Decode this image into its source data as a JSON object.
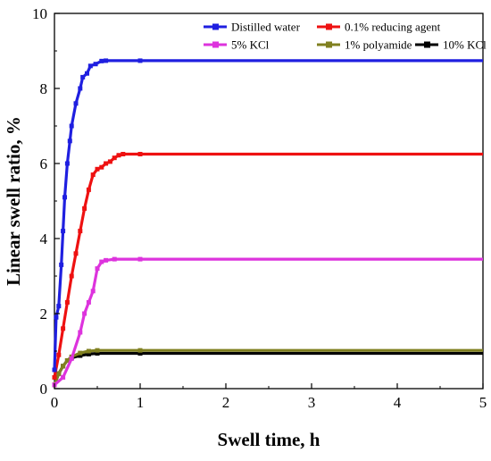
{
  "chart_data": {
    "type": "line",
    "title": "",
    "xlabel": "Swell time, h",
    "ylabel": "Linear swell ratio, %",
    "xlim": [
      0,
      5
    ],
    "ylim": [
      0,
      10
    ],
    "xticks": [
      "0",
      "1",
      "2",
      "3",
      "4",
      "5"
    ],
    "yticks": [
      "0",
      "2",
      "4",
      "6",
      "8",
      "10"
    ],
    "grid": false,
    "legend_position": "top-right",
    "series": [
      {
        "name": "Distilled water",
        "color": "#1f1fe0",
        "marker": "square",
        "points": [
          [
            0,
            0.5
          ],
          [
            0.02,
            1.9
          ],
          [
            0.05,
            2.2
          ],
          [
            0.08,
            3.3
          ],
          [
            0.1,
            4.2
          ],
          [
            0.12,
            5.1
          ],
          [
            0.15,
            6.0
          ],
          [
            0.18,
            6.6
          ],
          [
            0.2,
            7.0
          ],
          [
            0.25,
            7.6
          ],
          [
            0.3,
            8.0
          ],
          [
            0.33,
            8.3
          ],
          [
            0.38,
            8.4
          ],
          [
            0.42,
            8.6
          ],
          [
            0.48,
            8.65
          ],
          [
            0.55,
            8.73
          ],
          [
            0.6,
            8.74
          ],
          [
            1.0,
            8.74
          ],
          [
            5.0,
            8.74
          ]
        ]
      },
      {
        "name": "0.1% reducing agent",
        "color": "#ee1111",
        "marker": "square",
        "points": [
          [
            0,
            0.3
          ],
          [
            0.05,
            0.9
          ],
          [
            0.1,
            1.6
          ],
          [
            0.15,
            2.3
          ],
          [
            0.2,
            3.0
          ],
          [
            0.25,
            3.6
          ],
          [
            0.3,
            4.2
          ],
          [
            0.35,
            4.8
          ],
          [
            0.4,
            5.3
          ],
          [
            0.45,
            5.7
          ],
          [
            0.5,
            5.85
          ],
          [
            0.55,
            5.9
          ],
          [
            0.6,
            6.0
          ],
          [
            0.65,
            6.05
          ],
          [
            0.7,
            6.15
          ],
          [
            0.75,
            6.22
          ],
          [
            0.8,
            6.25
          ],
          [
            1.0,
            6.25
          ],
          [
            5.0,
            6.25
          ]
        ]
      },
      {
        "name": "5% KCl",
        "color": "#dd33dd",
        "marker": "square",
        "points": [
          [
            0,
            0.1
          ],
          [
            0.1,
            0.3
          ],
          [
            0.2,
            0.8
          ],
          [
            0.3,
            1.5
          ],
          [
            0.35,
            2.0
          ],
          [
            0.4,
            2.3
          ],
          [
            0.45,
            2.6
          ],
          [
            0.5,
            3.2
          ],
          [
            0.55,
            3.38
          ],
          [
            0.6,
            3.42
          ],
          [
            0.7,
            3.45
          ],
          [
            1.0,
            3.45
          ],
          [
            5.0,
            3.45
          ]
        ]
      },
      {
        "name": "1% polyamide",
        "color": "#808020",
        "marker": "square",
        "points": [
          [
            0,
            0.1
          ],
          [
            0.05,
            0.4
          ],
          [
            0.1,
            0.6
          ],
          [
            0.15,
            0.75
          ],
          [
            0.2,
            0.85
          ],
          [
            0.3,
            0.95
          ],
          [
            0.4,
            1.0
          ],
          [
            0.5,
            1.02
          ],
          [
            1.0,
            1.02
          ],
          [
            5.0,
            1.02
          ]
        ]
      },
      {
        "name": "10% KCl",
        "color": "#000000",
        "marker": "square",
        "points": [
          [
            0,
            0.1
          ],
          [
            0.05,
            0.4
          ],
          [
            0.1,
            0.6
          ],
          [
            0.15,
            0.75
          ],
          [
            0.2,
            0.82
          ],
          [
            0.3,
            0.88
          ],
          [
            0.4,
            0.92
          ],
          [
            0.5,
            0.94
          ],
          [
            1.0,
            0.94
          ],
          [
            5.0,
            0.94
          ]
        ]
      }
    ]
  }
}
